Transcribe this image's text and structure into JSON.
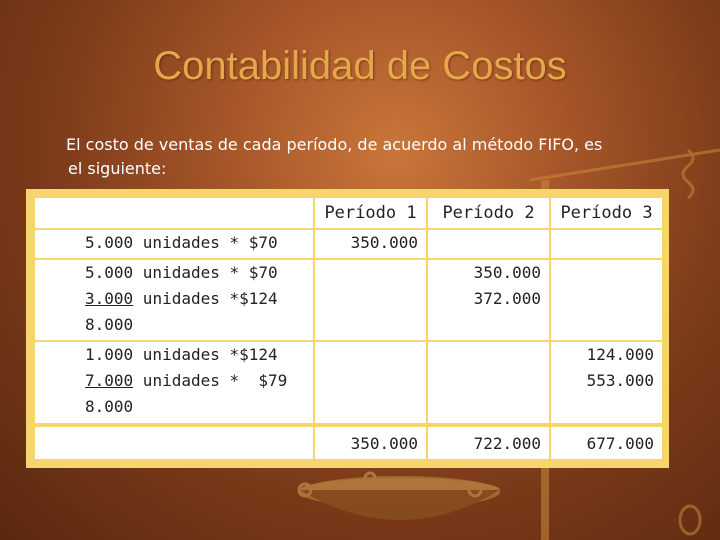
{
  "title": "Contabilidad de Costos",
  "intro": {
    "line1": "El costo de ventas de cada período, de acuerdo al método FIFO, es",
    "line2": "el siguiente:"
  },
  "table": {
    "headers": [
      "",
      "Período 1",
      "Período 2",
      "Período 3"
    ],
    "rows": {
      "r1": {
        "l1": "5.000 unidades * $70",
        "p1": "350.000"
      },
      "r2": {
        "l1": "5.000 unidades * $70",
        "l2_u": "3.000",
        "l2_rest": " unidades *$124",
        "l3": "8.000",
        "p2a": "350.000",
        "p2b": "372.000"
      },
      "r3": {
        "l1": "1.000 unidades *$124",
        "l2_u": "7.000",
        "l2_rest": " unidades *  $79",
        "l3": "8.000",
        "p3a": "124.000",
        "p3b": "553.000"
      }
    },
    "totals": [
      "350.000",
      "722.000",
      "677.000"
    ]
  },
  "colors": {
    "title": "#e6a64a",
    "table_border": "#f6d56c",
    "background": "#a9582a"
  }
}
